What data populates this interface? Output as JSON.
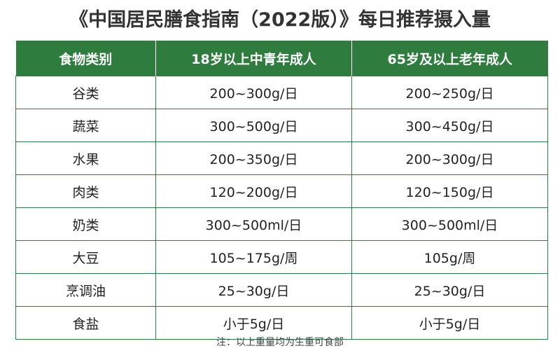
{
  "title": "《中国居民膳食指南（2022版）》每日推荐摄入量",
  "table": {
    "header": [
      "食物类别",
      "18岁以上中青年成人",
      "65岁及以上老年成人"
    ],
    "rows": [
      [
        "谷类",
        "200~300g/日",
        "200~250g/日"
      ],
      [
        "蔬菜",
        "300~500g/日",
        "300~450g/日"
      ],
      [
        "水果",
        "200~350g/日",
        "200~300g/日"
      ],
      [
        "肉类",
        "120~200g/日",
        "120~150g/日"
      ],
      [
        "奶类",
        "300~500ml/日",
        "300~500ml/日"
      ],
      [
        "大豆",
        "105~175g/周",
        "105g/周"
      ],
      [
        "烹调油",
        "25~30g/日",
        "25~30g/日"
      ],
      [
        "食盐",
        "小于5g/日",
        "小于5g/日"
      ]
    ]
  },
  "note": "注：以上重量均为生重可食部"
}
